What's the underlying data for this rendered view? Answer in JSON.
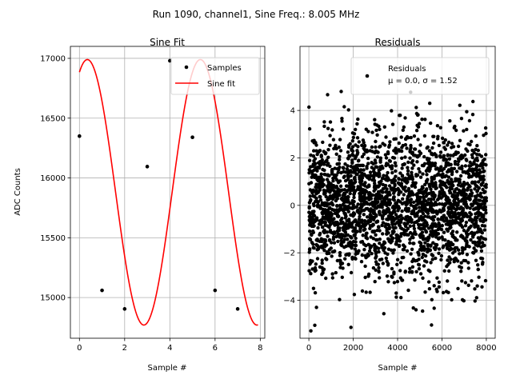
{
  "suptitle": "Run 1090, channel1, Sine Freq.: 8.005 MHz",
  "chart_data": [
    {
      "type": "line",
      "title": "Sine Fit",
      "xlabel": "Sample #",
      "ylabel": "ADC Counts",
      "xlim": [
        -0.4,
        8.2
      ],
      "ylim": [
        14660,
        17100
      ],
      "xticks": [
        0,
        2,
        4,
        6,
        8
      ],
      "yticks": [
        15000,
        15500,
        16000,
        16500,
        17000
      ],
      "grid": true,
      "legend": "upper-right",
      "series": [
        {
          "name": "Samples",
          "style": "points",
          "color": "#000000",
          "x": [
            0,
            1,
            2,
            3,
            4,
            5,
            6,
            7
          ],
          "y": [
            16350,
            15060,
            14905,
            16095,
            16980,
            16340,
            15060,
            14905
          ]
        },
        {
          "name": "Sine fit",
          "style": "line",
          "color": "#ff0000",
          "fit": {
            "offset": 15880,
            "amplitude": 1110,
            "period": 5.0,
            "phase_x": 0.35,
            "x_start": 0,
            "x_end": 7.9
          }
        }
      ]
    },
    {
      "type": "scatter",
      "title": "Residuals",
      "xlabel": "Sample #",
      "ylabel": "",
      "xlim": [
        -400,
        8400
      ],
      "ylim": [
        -5.6,
        6.7
      ],
      "xticks": [
        0,
        2000,
        4000,
        6000,
        8000
      ],
      "yticks": [
        -4,
        -2,
        0,
        2,
        4
      ],
      "grid": true,
      "legend": "upper-right",
      "series": [
        {
          "name": "Residuals\nμ = 0.0, σ = 1.52",
          "label_line1": "Residuals",
          "label_line2": "μ = 0.0, σ = 1.52",
          "color": "#000000",
          "n_points": 8000,
          "mean": 0.0,
          "sigma": 1.52,
          "x_range": [
            0,
            8000
          ]
        }
      ]
    }
  ]
}
